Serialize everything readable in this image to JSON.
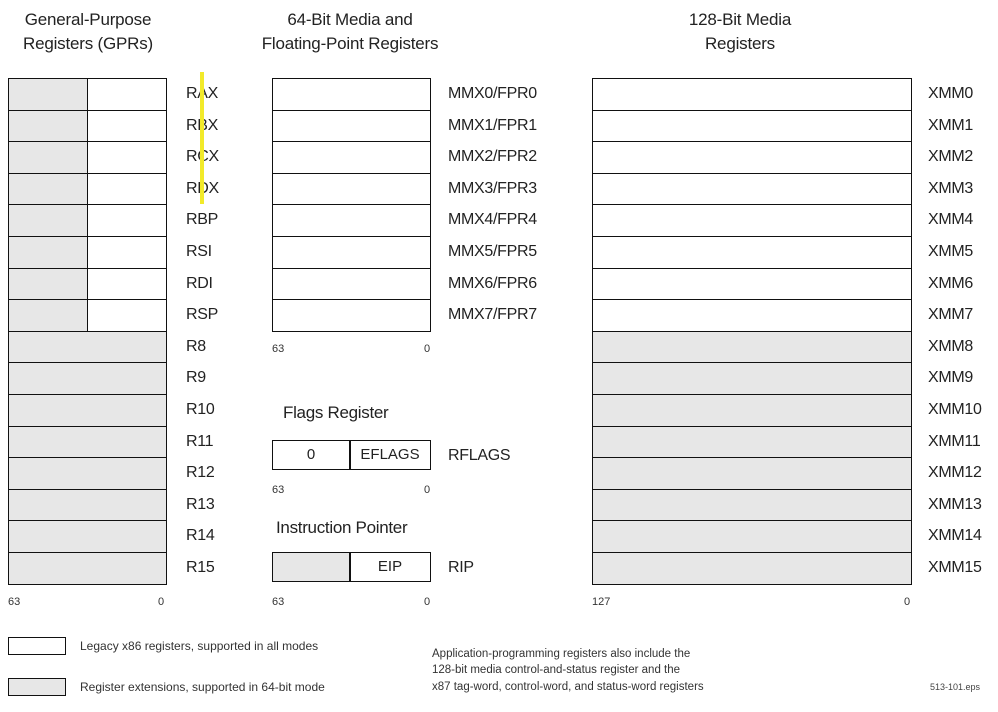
{
  "headings": {
    "gpr": [
      "General-Purpose",
      "Registers (GPRs)"
    ],
    "mmx": [
      "64-Bit Media and",
      "Floating-Point Registers"
    ],
    "xmm": [
      "128-Bit Media",
      "Registers"
    ]
  },
  "gpr_registers": [
    "RAX",
    "RBX",
    "RCX",
    "RDX",
    "RBP",
    "RSI",
    "RDI",
    "RSP",
    "R8",
    "R9",
    "R10",
    "R11",
    "R12",
    "R13",
    "R14",
    "R15"
  ],
  "gpr_legacy_count": 8,
  "mmx_registers": [
    "MMX0/FPR0",
    "MMX1/FPR1",
    "MMX2/FPR2",
    "MMX3/FPR3",
    "MMX4/FPR4",
    "MMX5/FPR5",
    "MMX6/FPR6",
    "MMX7/FPR7"
  ],
  "xmm_registers": [
    "XMM0",
    "XMM1",
    "XMM2",
    "XMM3",
    "XMM4",
    "XMM5",
    "XMM6",
    "XMM7",
    "XMM8",
    "XMM9",
    "XMM10",
    "XMM11",
    "XMM12",
    "XMM13",
    "XMM14",
    "XMM15"
  ],
  "xmm_legacy_count": 8,
  "ticks": {
    "gpr_hi": "63",
    "gpr_lo": "0",
    "mmx_hi": "63",
    "mmx_lo": "0",
    "flags_hi": "63",
    "flags_lo": "0",
    "ip_hi": "63",
    "ip_lo": "0",
    "xmm_hi": "127",
    "xmm_lo": "0"
  },
  "flags": {
    "title": "Flags Register",
    "upper_value": "0",
    "lower_label": "EFLAGS",
    "name": "RFLAGS"
  },
  "ip": {
    "title": "Instruction Pointer",
    "lower_label": "EIP",
    "name": "RIP"
  },
  "legend": {
    "legacy": "Legacy x86 registers, supported in all modes",
    "extension": "Register extensions, supported in 64-bit mode"
  },
  "note": [
    "Application-programming registers also include the",
    "128-bit media control-and-status register and the",
    "x87 tag-word, control-word, and status-word registers"
  ],
  "file_tag": "513-101.eps",
  "colors": {
    "legacy": "#ffffff",
    "extension": "#e7e7e7",
    "highlight": "#f2ea2a"
  }
}
